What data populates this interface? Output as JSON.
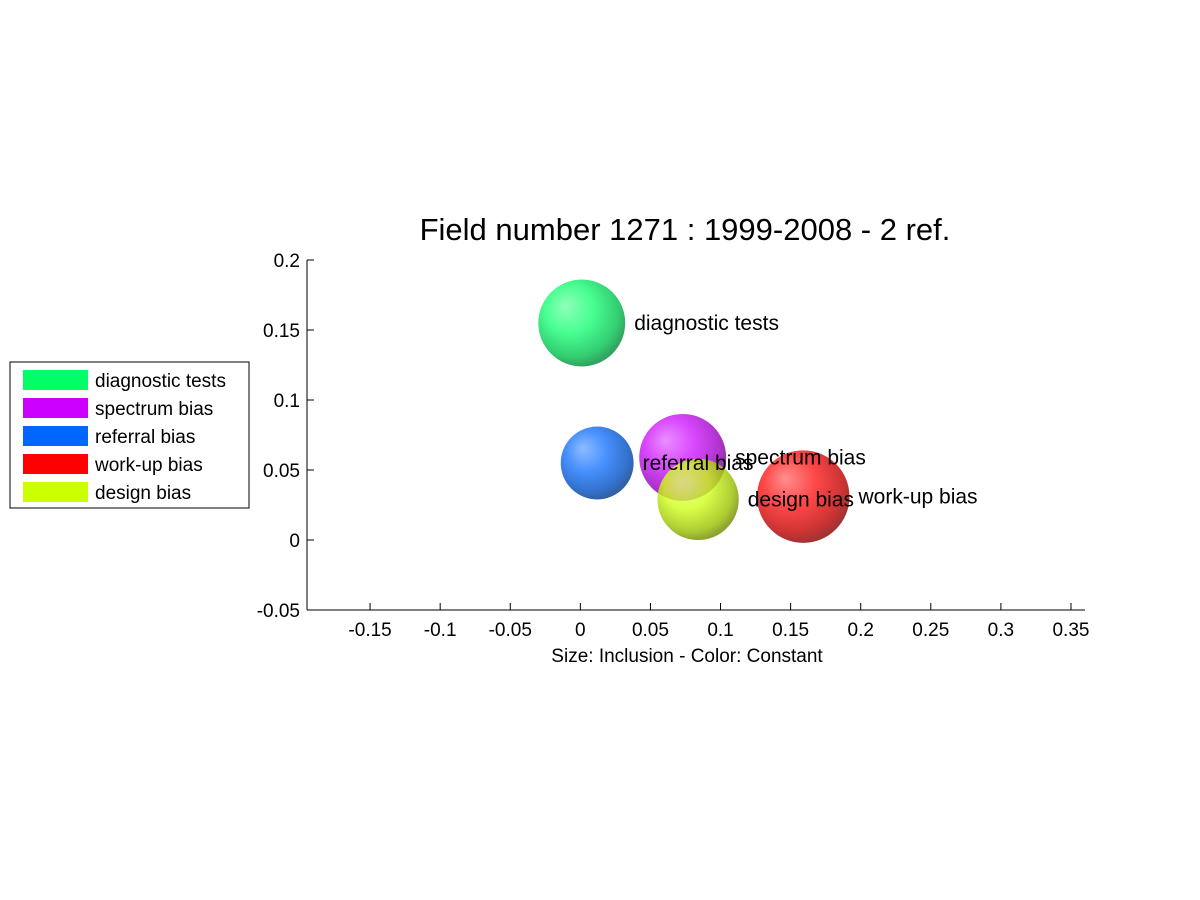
{
  "chart_data": {
    "type": "scatter",
    "title": "Field number 1271 : 1999-2008  - 2 ref.",
    "xlabel": "Size: Inclusion - Color: Constant",
    "ylabel": "",
    "xlim": [
      -0.195,
      0.36
    ],
    "ylim": [
      -0.05,
      0.2
    ],
    "xticks": [
      -0.15,
      -0.1,
      -0.05,
      0,
      0.05,
      0.1,
      0.15,
      0.2,
      0.25,
      0.3,
      0.35
    ],
    "xtick_labels": [
      "-0.15",
      "-0.1",
      "-0.05",
      "0",
      "0.05",
      "0.1",
      "0.15",
      "0.2",
      "0.25",
      "0.3",
      "0.35"
    ],
    "yticks": [
      -0.05,
      0,
      0.05,
      0.1,
      0.15,
      0.2
    ],
    "ytick_labels": [
      "-0.05",
      "0",
      "0.05",
      "0.1",
      "0.15",
      "0.2"
    ],
    "legend_position": "left",
    "points": [
      {
        "name": "diagnostic tests",
        "x": 0.001,
        "y": 0.155,
        "size": 0.031,
        "color": "#00ff66"
      },
      {
        "name": "spectrum bias",
        "x": 0.073,
        "y": 0.059,
        "size": 0.031,
        "color": "#cc00ff"
      },
      {
        "name": "referral bias",
        "x": 0.012,
        "y": 0.055,
        "size": 0.026,
        "color": "#0066ff"
      },
      {
        "name": "work-up bias",
        "x": 0.159,
        "y": 0.031,
        "size": 0.033,
        "color": "#ff0000"
      },
      {
        "name": "design bias",
        "x": 0.084,
        "y": 0.029,
        "size": 0.029,
        "color": "#ccff00"
      }
    ]
  }
}
